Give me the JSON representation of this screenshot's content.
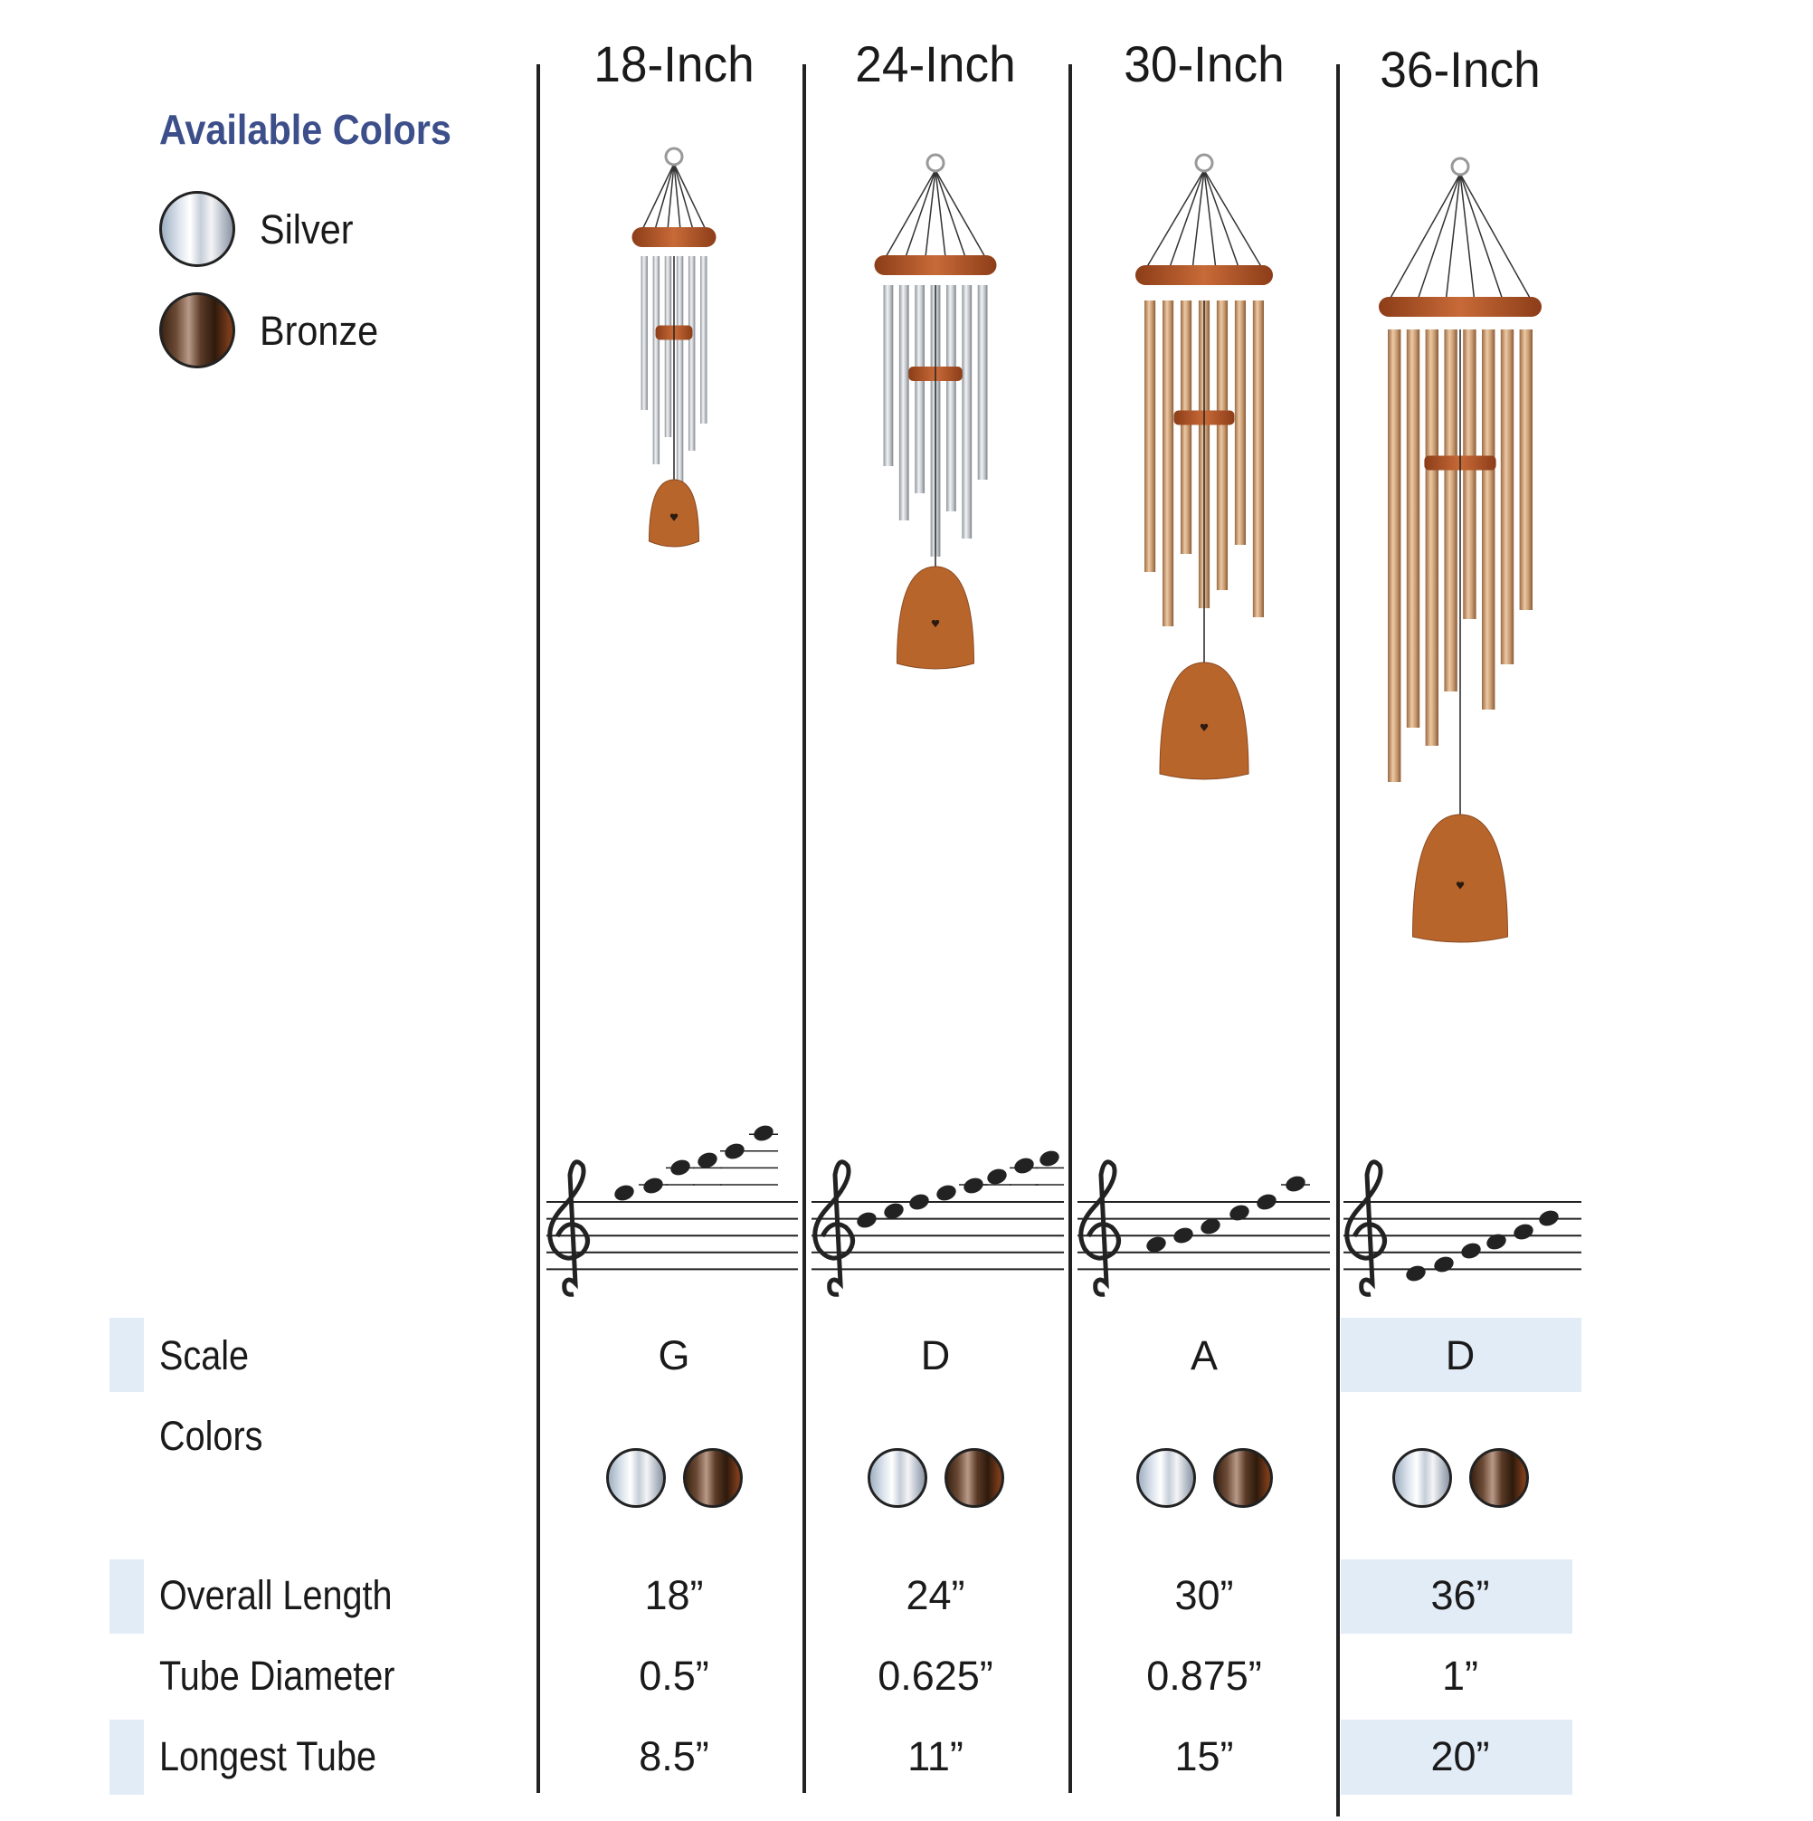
{
  "legend": {
    "title": "Available Colors",
    "items": [
      {
        "label": "Silver",
        "swatch": "silver"
      },
      {
        "label": "Bronze",
        "swatch": "bronze"
      }
    ]
  },
  "columns": [
    "18-Inch",
    "24-Inch",
    "30-Inch",
    "36-Inch"
  ],
  "rows": {
    "scale": {
      "label": "Scale",
      "values": [
        "G",
        "D",
        "A",
        "D"
      ]
    },
    "colors": {
      "label": "Colors",
      "values": [
        [
          "silver",
          "bronze"
        ],
        [
          "silver",
          "bronze"
        ],
        [
          "silver",
          "bronze"
        ],
        [
          "silver",
          "bronze"
        ]
      ]
    },
    "overall_length": {
      "label": "Overall Length",
      "values": [
        "18”",
        "24”",
        "30”",
        "36”"
      ]
    },
    "tube_diameter": {
      "label": "Tube Diameter",
      "values": [
        "0.5”",
        "0.625”",
        "0.875”",
        "1”"
      ]
    },
    "longest_tube": {
      "label": "Longest Tube",
      "values": [
        "8.5”",
        "11”",
        "15”",
        "20”"
      ]
    }
  },
  "chime_finish": [
    "silver",
    "silver",
    "bronze",
    "bronze"
  ],
  "colors": {
    "title": "#3d4f8a",
    "highlight": "#e2ecf7",
    "silver": "#c8ccd2",
    "bronze": "#c9a07a",
    "wood": "#b5582a"
  }
}
